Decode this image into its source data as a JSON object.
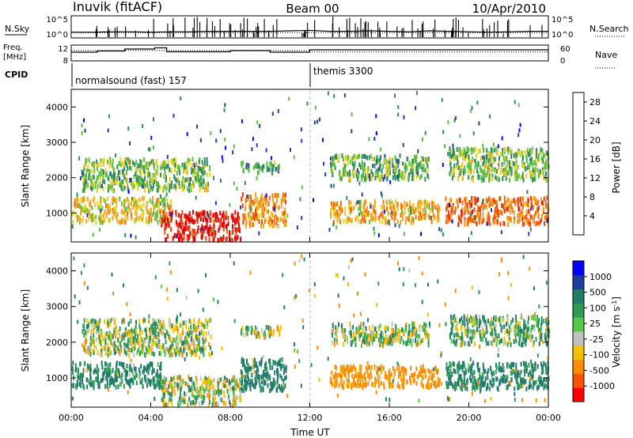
{
  "header": {
    "station": "Inuvik (fitACF)",
    "beam": "Beam 00",
    "date": "10/Apr/2010"
  },
  "strips": {
    "nsky_label": "N.Sky",
    "nsearch_label": "N.Search",
    "noise_ticks": [
      "10^5",
      "10^0"
    ],
    "freq_label_1": "Freq.",
    "freq_label_2": "[MHz]",
    "freq_ticks": [
      "12",
      "8"
    ],
    "nave_label": "Nave",
    "nave_ticks": [
      "60",
      "0"
    ],
    "cpid_label": "CPID",
    "cpid_segments": [
      {
        "name": "normalsound (fast) 157",
        "start_hour": 0,
        "end_hour": 12
      },
      {
        "name": "themis 3300",
        "start_hour": 12,
        "end_hour": 24
      }
    ]
  },
  "panels": {
    "x_axis_label": "Time UT",
    "x_ticks": [
      "00:00",
      "04:00",
      "08:00",
      "12:00",
      "16:00",
      "20:00",
      "00:00"
    ],
    "y_axis_label": "Slant Range [km]",
    "y_ticks": [
      "1000",
      "2000",
      "3000",
      "4000"
    ]
  },
  "colors": {
    "power_scale": [
      "#0000ff",
      "#1f3fa0",
      "#2d8a60",
      "#5fc040",
      "#e8d020",
      "#f0a020",
      "#f07010",
      "#e84010",
      "#e00000"
    ],
    "velocity_scale": [
      "#ff0000",
      "#ff5000",
      "#ff8c00",
      "#f2c200",
      "#c0c0c0",
      "#55c848",
      "#2e9a56",
      "#227a6a",
      "#1e3e9c",
      "#0000ff"
    ]
  },
  "chart_data": [
    {
      "type": "line",
      "title": "",
      "xlabel": "",
      "ylabel": "N.Sky",
      "y_scale": "log",
      "ylim_labels": [
        "10^0",
        "10^5"
      ],
      "xlim": [
        0,
        24
      ],
      "series": [
        {
          "name": "N.Sky",
          "x": [
            0,
            1,
            2,
            3,
            4,
            5,
            6,
            7,
            8,
            9,
            10,
            11,
            12,
            13,
            14,
            15,
            16,
            17,
            18,
            19,
            20,
            21,
            22,
            23,
            24
          ],
          "y_log10": [
            1.3,
            1.3,
            1.4,
            1.4,
            1.3,
            1.4,
            1.4,
            1.5,
            1.5,
            1.5,
            1.5,
            1.6,
            1.7,
            1.5,
            1.5,
            1.6,
            1.5,
            1.4,
            1.6,
            1.5,
            1.4,
            1.3,
            1.4,
            1.5,
            1.5
          ]
        },
        {
          "name": "N.Search",
          "x": [
            0,
            24
          ],
          "y_log10": [
            1.0,
            1.0
          ]
        }
      ]
    },
    {
      "type": "line",
      "title": "",
      "xlabel": "",
      "ylabel": "Freq. [MHz]",
      "ylim": [
        8,
        12
      ],
      "y2label": "Nave",
      "y2lim": [
        0,
        60
      ],
      "xlim": [
        0,
        24
      ],
      "series": [
        {
          "name": "Freq.",
          "x": [
            0,
            1.3,
            1.3,
            2.7,
            2.7,
            4.2,
            4.2,
            4.8,
            4.8,
            8.0,
            8.0,
            10.0,
            10.0,
            12.0,
            12.0,
            24.0
          ],
          "y": [
            10.2,
            10.2,
            10.5,
            10.5,
            11.0,
            11.0,
            11.3,
            11.3,
            10.3,
            10.3,
            10.6,
            10.6,
            10.2,
            10.2,
            10.8,
            10.8
          ]
        },
        {
          "name": "Nave",
          "x": [
            0,
            12,
            12,
            24
          ],
          "y": [
            40,
            40,
            34,
            34
          ]
        }
      ]
    },
    {
      "type": "heatmap",
      "title": "",
      "xlabel": "Time UT",
      "ylabel": "Slant Range [km]",
      "colorbar_label": "Power [dB]",
      "colorbar_ticks": [
        4,
        8,
        12,
        16,
        20,
        24,
        28
      ],
      "clim": [
        0,
        30
      ],
      "xlim": [
        0,
        24
      ],
      "ylim": [
        180,
        4500
      ],
      "x_ticks": [
        "00:00",
        "04:00",
        "08:00",
        "12:00",
        "16:00",
        "20:00",
        "00:00"
      ],
      "y_ticks": [
        1000,
        2000,
        3000,
        4000
      ],
      "scatter_regions": [
        {
          "start_hour": 0.0,
          "end_hour": 5.0,
          "range_min": 700,
          "range_max": 1400,
          "value": 16
        },
        {
          "start_hour": 4.5,
          "end_hour": 8.5,
          "range_min": 200,
          "range_max": 1000,
          "value": 28
        },
        {
          "start_hour": 8.5,
          "end_hour": 10.8,
          "range_min": 600,
          "range_max": 1500,
          "value": 20
        },
        {
          "start_hour": 0.5,
          "end_hour": 7.0,
          "range_min": 1600,
          "range_max": 2500,
          "value": 12
        },
        {
          "start_hour": 8.5,
          "end_hour": 10.5,
          "range_min": 2100,
          "range_max": 2400,
          "value": 10
        },
        {
          "start_hour": 13.0,
          "end_hour": 18.5,
          "range_min": 700,
          "range_max": 1300,
          "value": 18
        },
        {
          "start_hour": 18.8,
          "end_hour": 24.0,
          "range_min": 650,
          "range_max": 1400,
          "value": 22
        },
        {
          "start_hour": 13.0,
          "end_hour": 18.0,
          "range_min": 1900,
          "range_max": 2600,
          "value": 11
        },
        {
          "start_hour": 19.0,
          "end_hour": 24.0,
          "range_min": 1900,
          "range_max": 2800,
          "value": 12
        }
      ]
    },
    {
      "type": "heatmap",
      "title": "",
      "xlabel": "Time UT",
      "ylabel": "Slant Range [km]",
      "colorbar_label": "Velocity [m s^-1]",
      "colorbar_ticks": [
        -1000,
        -500,
        -100,
        -25,
        25,
        100,
        500,
        1000
      ],
      "clim": [
        -1000,
        1000
      ],
      "xlim": [
        0,
        24
      ],
      "ylim": [
        180,
        4500
      ],
      "x_ticks": [
        "00:00",
        "04:00",
        "08:00",
        "12:00",
        "16:00",
        "20:00",
        "00:00"
      ],
      "y_ticks": [
        1000,
        2000,
        3000,
        4000
      ],
      "scatter_regions": [
        {
          "start_hour": 0.0,
          "end_hour": 4.5,
          "range_min": 700,
          "range_max": 1400,
          "value": 150
        },
        {
          "start_hour": 4.5,
          "end_hour": 8.5,
          "range_min": 200,
          "range_max": 1000,
          "value": 0
        },
        {
          "start_hour": 8.5,
          "end_hour": 10.8,
          "range_min": 600,
          "range_max": 1500,
          "value": 200
        },
        {
          "start_hour": 0.5,
          "end_hour": 7.0,
          "range_min": 1600,
          "range_max": 2600,
          "value": 0
        },
        {
          "start_hour": 8.5,
          "end_hour": 10.5,
          "range_min": 2100,
          "range_max": 2400,
          "value": 0
        },
        {
          "start_hour": 13.0,
          "end_hour": 18.5,
          "range_min": 700,
          "range_max": 1300,
          "value": -200
        },
        {
          "start_hour": 18.8,
          "end_hour": 24.0,
          "range_min": 650,
          "range_max": 1400,
          "value": 150
        },
        {
          "start_hour": 13.0,
          "end_hour": 18.0,
          "range_min": 1900,
          "range_max": 2500,
          "value": 0
        },
        {
          "start_hour": 19.0,
          "end_hour": 24.0,
          "range_min": 1900,
          "range_max": 2700,
          "value": 60
        }
      ]
    }
  ]
}
